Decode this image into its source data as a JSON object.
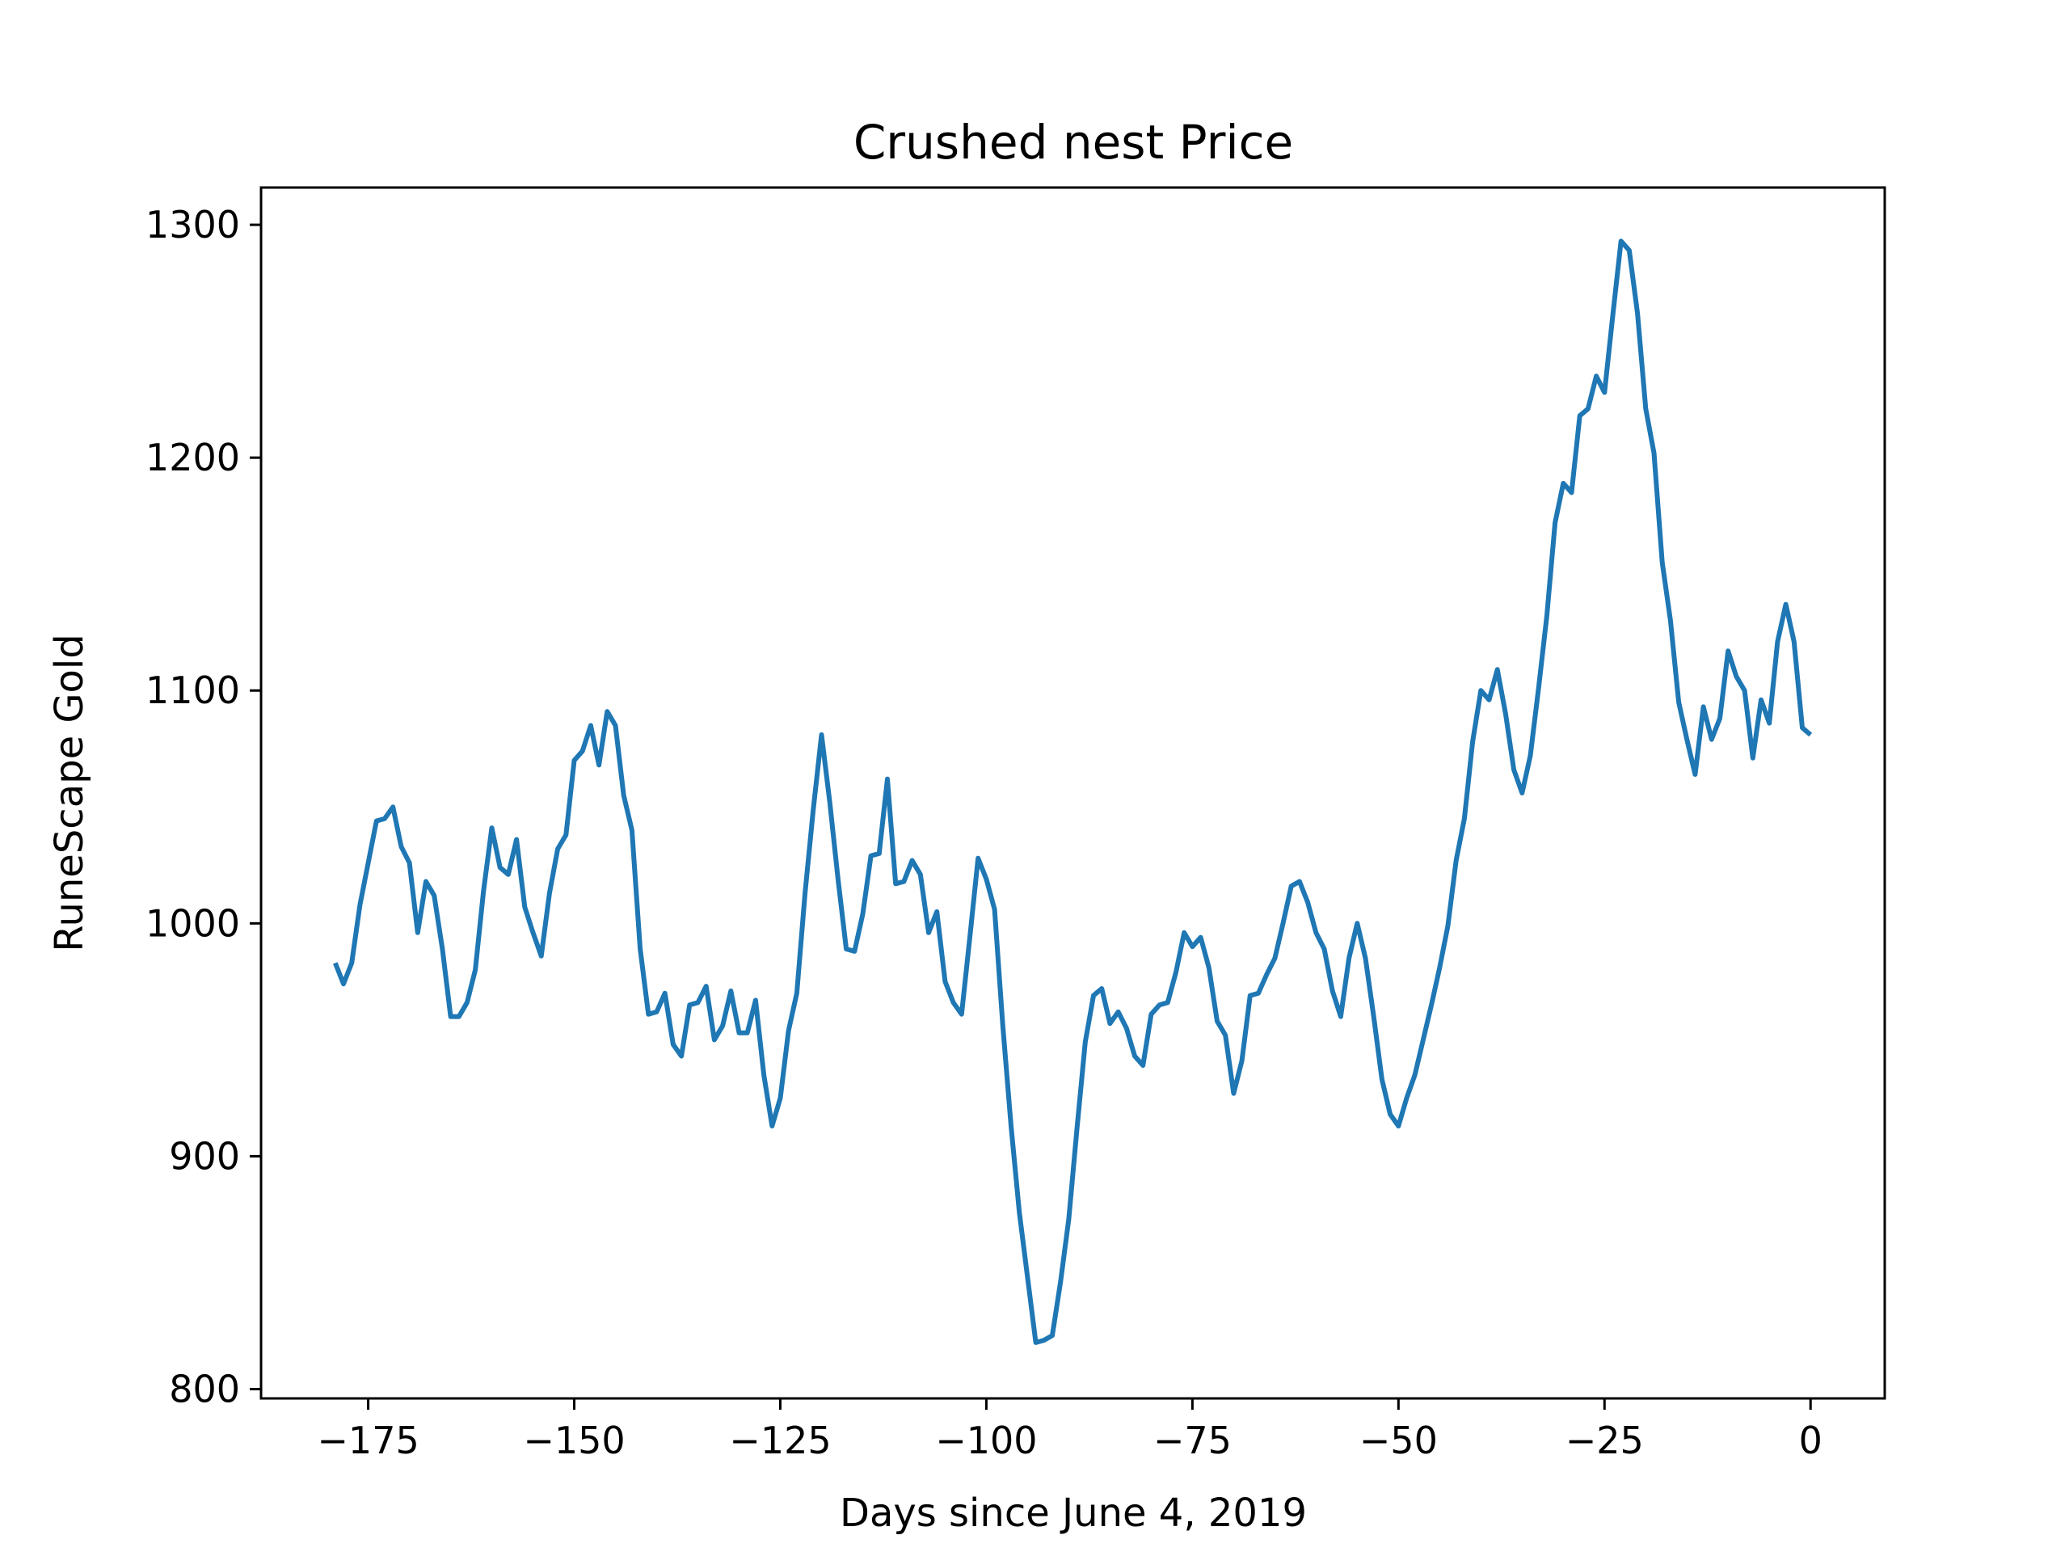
{
  "chart_data": {
    "type": "line",
    "title": "Crushed nest Price",
    "xlabel": "Days since June 4, 2019",
    "ylabel": "RuneScape Gold",
    "xlim": [
      -188,
      9
    ],
    "ylim": [
      796,
      1316
    ],
    "x_ticks": [
      {
        "value": -175,
        "label": "−175"
      },
      {
        "value": -150,
        "label": "−150"
      },
      {
        "value": -125,
        "label": "−125"
      },
      {
        "value": -100,
        "label": "−100"
      },
      {
        "value": -75,
        "label": "−75"
      },
      {
        "value": -50,
        "label": "−50"
      },
      {
        "value": -25,
        "label": "−25"
      },
      {
        "value": 0,
        "label": "0"
      }
    ],
    "y_ticks": [
      {
        "value": 800,
        "label": "800"
      },
      {
        "value": 900,
        "label": "900"
      },
      {
        "value": 1000,
        "label": "1000"
      },
      {
        "value": 1100,
        "label": "1100"
      },
      {
        "value": 1200,
        "label": "1200"
      },
      {
        "value": 1300,
        "label": "1300"
      }
    ],
    "grid": false,
    "color": "#1f77b4",
    "series": [
      {
        "x": [
          -179,
          -178,
          -177,
          -176,
          -175,
          -174,
          -173,
          -172,
          -171,
          -170,
          -169,
          -168,
          -167,
          -166,
          -165,
          -164,
          -163,
          -162,
          -161,
          -160,
          -159,
          -158,
          -157,
          -156,
          -155,
          -154,
          -153,
          -152,
          -151,
          -150,
          -149,
          -148,
          -147,
          -146,
          -145,
          -144,
          -143,
          -142,
          -141,
          -140,
          -139,
          -138,
          -137,
          -136,
          -135,
          -134,
          -133,
          -132,
          -131,
          -130,
          -129,
          -128,
          -127,
          -126,
          -125,
          -124,
          -123,
          -122,
          -121,
          -120,
          -119,
          -118,
          -117,
          -116,
          -115,
          -114,
          -113,
          -112,
          -111,
          -110,
          -109,
          -108,
          -107,
          -106,
          -105,
          -104,
          -103,
          -102,
          -101,
          -100,
          -99,
          -98,
          -97,
          -96,
          -95,
          -94,
          -93,
          -92,
          -91,
          -90,
          -89,
          -88,
          -87,
          -86,
          -85,
          -84,
          -83,
          -82,
          -81,
          -80,
          -79,
          -78,
          -77,
          -76,
          -75,
          -74,
          -73,
          -72,
          -71,
          -70,
          -69,
          -68,
          -67,
          -66,
          -65,
          -64,
          -63,
          -62,
          -61,
          -60,
          -59,
          -58,
          -57,
          -56,
          -55,
          -54,
          -53,
          -52,
          -51,
          -50,
          -49,
          -48,
          -47,
          -46,
          -45,
          -44,
          -43,
          -42,
          -41,
          -40,
          -39,
          -38,
          -37,
          -36,
          -35,
          -34,
          -33,
          -32,
          -31,
          -30,
          -29,
          -28,
          -27,
          -26,
          -25,
          -24,
          -23,
          -22,
          -21,
          -20,
          -19,
          -18,
          -17,
          -16,
          -15,
          -14,
          -13,
          -12,
          -11,
          -10,
          -9,
          -8,
          -7,
          -6,
          -5,
          -4,
          -3,
          -2,
          -1,
          0
        ],
        "y": [
          983,
          974,
          983,
          1008,
          1026,
          1044,
          1045,
          1050,
          1033,
          1026,
          996,
          1018,
          1012,
          989,
          960,
          960,
          966,
          980,
          1014,
          1041,
          1024,
          1021,
          1036,
          1007,
          996,
          986,
          1013,
          1032,
          1038,
          1070,
          1074,
          1085,
          1068,
          1091,
          1085,
          1055,
          1040,
          989,
          961,
          962,
          970,
          948,
          943,
          965,
          966,
          973,
          950,
          956,
          971,
          953,
          953,
          967,
          935,
          913,
          925,
          954,
          970,
          1013,
          1049,
          1081,
          1052,
          1019,
          989,
          988,
          1004,
          1029,
          1030,
          1062,
          1017,
          1018,
          1027,
          1021,
          996,
          1005,
          975,
          966,
          961,
          994,
          1028,
          1019,
          1006,
          956,
          913,
          876,
          848,
          820,
          821,
          823,
          846,
          873,
          912,
          949,
          969,
          972,
          957,
          962,
          955,
          943,
          939,
          961,
          965,
          966,
          979,
          996,
          990,
          994,
          981,
          958,
          952,
          927,
          941,
          969,
          970,
          978,
          985,
          1000,
          1016,
          1018,
          1009,
          996,
          989,
          971,
          960,
          985,
          1000,
          985,
          960,
          933,
          918,
          913,
          925,
          935,
          950,
          965,
          981,
          999,
          1027,
          1045,
          1078,
          1100,
          1096,
          1109,
          1090,
          1066,
          1056,
          1072,
          1101,
          1132,
          1172,
          1189,
          1185,
          1218,
          1221,
          1235,
          1228,
          1261,
          1293,
          1289,
          1262,
          1221,
          1202,
          1155,
          1130,
          1095,
          1079,
          1064,
          1093,
          1079,
          1088,
          1117,
          1106,
          1100,
          1071,
          1096,
          1086,
          1121,
          1137,
          1121,
          1084,
          1081
        ]
      }
    ]
  }
}
